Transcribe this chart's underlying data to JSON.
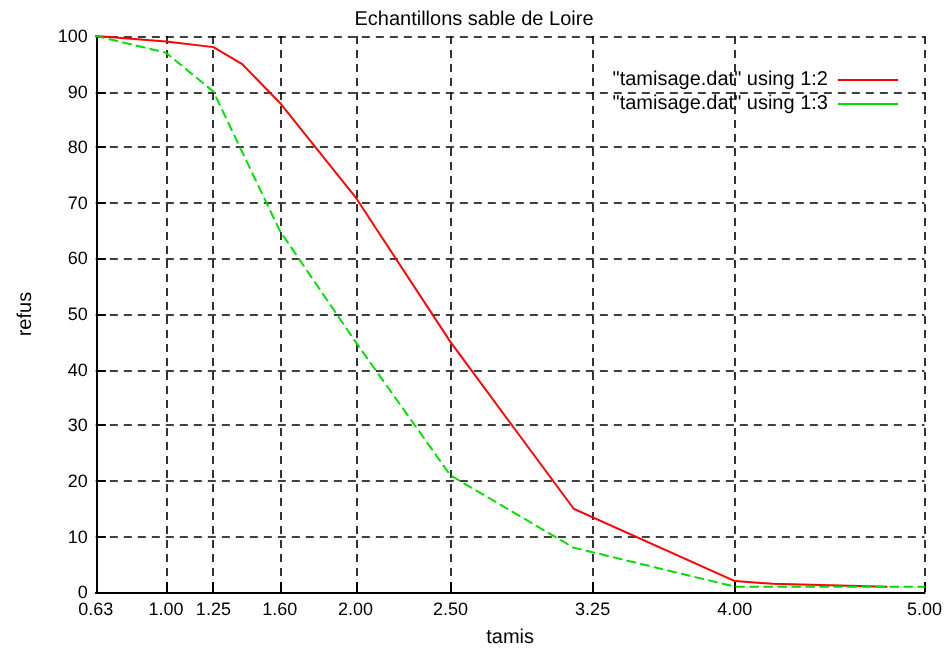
{
  "chart_data": {
    "type": "line",
    "title": "Echantillons sable de Loire",
    "xlabel": "tamis",
    "ylabel": "refus",
    "xlim": [
      0.63,
      5
    ],
    "xticks": [
      {
        "value": 0.63,
        "label": "0.63"
      },
      {
        "value": 1,
        "label": "1.00"
      },
      {
        "value": 1.25,
        "label": "1.25"
      },
      {
        "value": 1.6,
        "label": "1.60"
      },
      {
        "value": 2,
        "label": "2.00"
      },
      {
        "value": 2.5,
        "label": "2.50"
      },
      {
        "value": 3.25,
        "label": "3.25"
      },
      {
        "value": 4,
        "label": "4.00"
      },
      {
        "value": 5,
        "label": "5.00"
      }
    ],
    "ylim": [
      0,
      100
    ],
    "yticks": [
      0,
      10,
      20,
      30,
      40,
      50,
      60,
      70,
      80,
      90,
      100
    ],
    "series": [
      {
        "name": "\"tamisage.dat\" using 1:2",
        "color": "#ff0000",
        "line_style": "solid",
        "x": [
          0.63,
          1,
          1.25,
          1.4,
          1.6,
          2,
          2.5,
          3.15,
          4,
          4.2,
          4.8
        ],
        "values": [
          100,
          99,
          98,
          95,
          88,
          71,
          45,
          15,
          2,
          1.5,
          1
        ]
      },
      {
        "name": "\"tamisage.dat\" using 1:3",
        "color": "#00dd00",
        "line_style": "dashed",
        "x": [
          0.63,
          1,
          1.25,
          1.6,
          2,
          2.5,
          3.15,
          4,
          5
        ],
        "values": [
          100,
          97,
          90,
          65,
          45,
          21,
          8,
          1,
          1
        ]
      }
    ],
    "grid": true,
    "legend": "top right",
    "marker": "none"
  }
}
